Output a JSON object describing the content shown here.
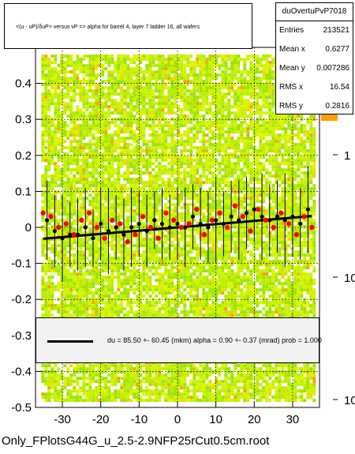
{
  "title": "<(u - uP)/δuP> versus   vP => alpha for barrel 4, layer 7 ladder 16, all wafers",
  "stats": {
    "name": "duOvertuPvP7018",
    "rows": [
      {
        "label": "Entries",
        "value": "213521"
      },
      {
        "label": "Mean x",
        "value": "0.6277"
      },
      {
        "label": "Mean y",
        "value": "0.007286"
      },
      {
        "label": "RMS x",
        "value": "16.54"
      },
      {
        "label": "RMS y",
        "value": "0.2816"
      }
    ]
  },
  "fit_text": "du =   85.50 +- 60.45 (mkm) alpha =    0.90 +-  0.37 (mrad) prob = 1.000",
  "filename": "Only_FPlotsG44G_u_2.5-2.9NFP25rCut0.5cm.root",
  "chart_data": {
    "type": "scatter",
    "xlim": [
      -37,
      37
    ],
    "ylim": [
      -0.5,
      0.5
    ],
    "x_ticks": [
      -30,
      -20,
      -10,
      0,
      10,
      20,
      30
    ],
    "y_ticks": [
      -0.5,
      -0.4,
      -0.3,
      -0.2,
      -0.1,
      0,
      0.1,
      0.2,
      0.3,
      0.4
    ],
    "grid": true,
    "z_scale": "log",
    "z_ticks": [
      "1",
      "10",
      "10"
    ],
    "fit": {
      "intercept": 0.0,
      "slope": 0.0009
    },
    "profile_black": {
      "x": [
        -34,
        -32,
        -30,
        -28,
        -26,
        -24,
        -22,
        -20,
        -18,
        -16,
        -14,
        -12,
        -10,
        -8,
        -6,
        -4,
        -2,
        0,
        2,
        4,
        6,
        8,
        10,
        12,
        14,
        16,
        18,
        20,
        22,
        24,
        26,
        28,
        30,
        32,
        34
      ],
      "y": [
        0.02,
        -0.01,
        -0.03,
        -0.02,
        -0.02,
        0.0,
        -0.03,
        0.01,
        -0.01,
        0.0,
        -0.02,
        0.0,
        0.01,
        -0.01,
        0.02,
        0.01,
        0.0,
        0.01,
        0.0,
        0.03,
        0.01,
        0.0,
        0.02,
        0.01,
        0.03,
        0.02,
        0.04,
        0.05,
        0.03,
        0.02,
        0.03,
        0.02,
        0.03,
        0.01,
        0.05
      ],
      "err": [
        0.11,
        0.1,
        0.12,
        0.09,
        0.1,
        0.11,
        0.08,
        0.1,
        0.12,
        0.09,
        0.1,
        0.11,
        0.09,
        0.1,
        0.08,
        0.1,
        0.09,
        0.1,
        0.11,
        0.09,
        0.1,
        0.1,
        0.12,
        0.09,
        0.1,
        0.11,
        0.1,
        0.09,
        0.12,
        0.1,
        0.1,
        0.13,
        0.11,
        0.1,
        0.12
      ]
    },
    "profile_red": {
      "x": [
        -35,
        -33,
        -31,
        -29,
        -27,
        -25,
        -23,
        -21,
        -19,
        -17,
        -15,
        -13,
        -11,
        -9,
        -7,
        -5,
        -3,
        -1,
        1,
        3,
        5,
        7,
        9,
        11,
        13,
        15,
        17,
        19,
        21,
        23,
        25,
        27,
        29,
        31,
        33,
        35
      ],
      "y": [
        0.04,
        0.03,
        0.0,
        0.01,
        -0.02,
        0.02,
        0.04,
        0.0,
        -0.03,
        0.02,
        0.01,
        -0.04,
        -0.02,
        0.03,
        0.0,
        -0.03,
        0.04,
        0.02,
        0.0,
        0.01,
        0.05,
        -0.02,
        0.02,
        0.04,
        0.0,
        0.06,
        0.03,
        -0.01,
        0.05,
        0.02,
        0.0,
        0.04,
        0.01,
        -0.02,
        0.03,
        0.0
      ]
    }
  }
}
